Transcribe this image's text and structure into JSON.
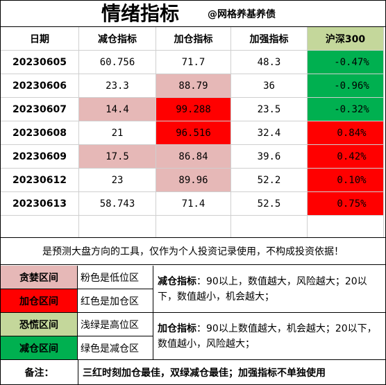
{
  "title": "情绪指标",
  "author": "@网格养基养债",
  "colors": {
    "pink": "#E6B8B7",
    "red": "#FF0000",
    "light_green": "#C4D79B",
    "green": "#00B050",
    "grid": "#cfcfcf"
  },
  "table": {
    "headers": [
      "日期",
      "减仓指标",
      "加仓指标",
      "加强指标",
      "沪深300"
    ],
    "rows": [
      {
        "date": "20230605",
        "reduce": "60.756",
        "add": "71.7",
        "strength": "48.3",
        "hs300": "-0.47%",
        "reduce_color": "",
        "add_color": "",
        "hs_color": "green"
      },
      {
        "date": "20230606",
        "reduce": "23.3",
        "add": "88.79",
        "strength": "36",
        "hs300": "-0.96%",
        "reduce_color": "",
        "add_color": "pink",
        "hs_color": "green"
      },
      {
        "date": "20230607",
        "reduce": "14.4",
        "add": "99.288",
        "strength": "23.5",
        "hs300": "-0.32%",
        "reduce_color": "pink",
        "add_color": "red",
        "hs_color": "green"
      },
      {
        "date": "20230608",
        "reduce": "21",
        "add": "96.516",
        "strength": "32.4",
        "hs300": "0.84%",
        "reduce_color": "",
        "add_color": "red",
        "hs_color": "red"
      },
      {
        "date": "20230609",
        "reduce": "17.5",
        "add": "86.84",
        "strength": "39.6",
        "hs300": "0.42%",
        "reduce_color": "pink",
        "add_color": "pink",
        "hs_color": "red"
      },
      {
        "date": "20230612",
        "reduce": "23",
        "add": "89.96",
        "strength": "52.2",
        "hs300": "0.10%",
        "reduce_color": "",
        "add_color": "pink",
        "hs_color": "red"
      },
      {
        "date": "20230613",
        "reduce": "58.743",
        "add": "71.4",
        "strength": "52.5",
        "hs300": "0.75%",
        "reduce_color": "",
        "add_color": "",
        "hs_color": "red"
      }
    ]
  },
  "disclaimer": "是预测大盘方向的工具，仅作为个人投资记录使用，不构成投资依据！",
  "legend": [
    {
      "zone": "贪婪区间",
      "desc": "粉色是低位区",
      "color": "pink"
    },
    {
      "zone": "加仓区间",
      "desc": "红色是加仓区",
      "color": "red"
    },
    {
      "zone": "恐慌区间",
      "desc": "浅绿是高位区",
      "color": "light_green"
    },
    {
      "zone": "减仓区间",
      "desc": "绿色是减仓区",
      "color": "green"
    }
  ],
  "notes": {
    "reduce_label": "减仓指标",
    "reduce_text": "：90以上，数值越大，风险越大；20以下，数值越小，机会越大；",
    "add_label": "加仓指标",
    "add_text": "：90以上数值越大，机会越大；20以下，数值越小，风险越大；"
  },
  "remark": {
    "label": "备注：",
    "text": "三红时刻加仓最佳，双绿减仓最佳；加强指标不单独使用"
  }
}
